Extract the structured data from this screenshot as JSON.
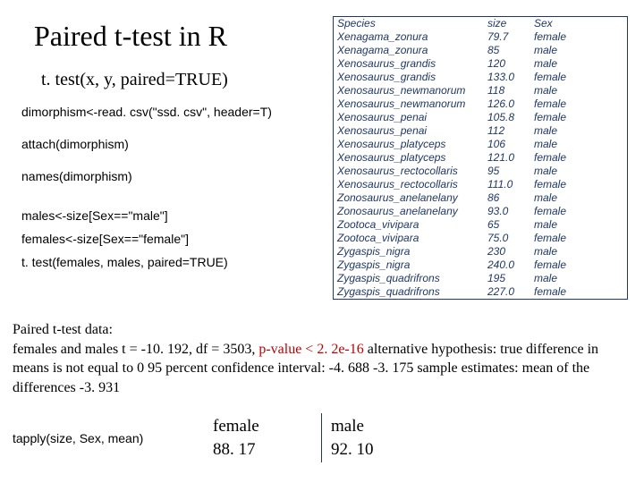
{
  "title": "Paired t-test in R",
  "subtitle": "t. test(x, y, paired=TRUE)",
  "code": {
    "line1": "dimorphism<-read. csv(\"ssd. csv\", header=T)",
    "line2": "attach(dimorphism)",
    "line3": "names(dimorphism)",
    "line4": "males<-size[Sex==\"male\"]",
    "line5": "females<-size[Sex==\"female\"]",
    "line6": "t. test(females, males, paired=TRUE)"
  },
  "table": {
    "headers": {
      "species": "Species",
      "size": "size",
      "sex": "Sex"
    },
    "rows": [
      {
        "species": "Xenagama_zonura",
        "size": "79.7",
        "sex": "female"
      },
      {
        "species": "Xenagama_zonura",
        "size": "85",
        "sex": "male"
      },
      {
        "species": "Xenosaurus_grandis",
        "size": "120",
        "sex": "male"
      },
      {
        "species": "Xenosaurus_grandis",
        "size": "133.0",
        "sex": "female"
      },
      {
        "species": "Xenosaurus_newmanorum",
        "size": "118",
        "sex": "male"
      },
      {
        "species": "Xenosaurus_newmanorum",
        "size": "126.0",
        "sex": "female"
      },
      {
        "species": "Xenosaurus_penai",
        "size": "105.8",
        "sex": "female"
      },
      {
        "species": "Xenosaurus_penai",
        "size": "112",
        "sex": "male"
      },
      {
        "species": "Xenosaurus_platyceps",
        "size": "106",
        "sex": "male"
      },
      {
        "species": "Xenosaurus_platyceps",
        "size": "121.0",
        "sex": "female"
      },
      {
        "species": "Xenosaurus_rectocollaris",
        "size": "95",
        "sex": "male"
      },
      {
        "species": "Xenosaurus_rectocollaris",
        "size": "111.0",
        "sex": "female"
      },
      {
        "species": "Zonosaurus_anelanelany",
        "size": "86",
        "sex": "male"
      },
      {
        "species": "Zonosaurus_anelanelany",
        "size": "93.0",
        "sex": "female"
      },
      {
        "species": "Zootoca_vivipara",
        "size": "65",
        "sex": "male"
      },
      {
        "species": "Zootoca_vivipara",
        "size": "75.0",
        "sex": "female"
      },
      {
        "species": "Zygaspis_nigra",
        "size": "230",
        "sex": "male"
      },
      {
        "species": "Zygaspis_nigra",
        "size": "240.0",
        "sex": "female"
      },
      {
        "species": "Zygaspis_quadrifrons",
        "size": "195",
        "sex": "male"
      },
      {
        "species": "Zygaspis_quadrifrons",
        "size": "227.0",
        "sex": "female"
      }
    ]
  },
  "results": {
    "part1": "Paired t-test data:",
    "part2": "females and males t = -10. 192, df = 3503, ",
    "pvalue": "p-value < 2. 2e-16",
    "part3": " alternative hypothesis: true difference in means is not equal to 0 95 percent confidence interval: -4. 688 -3. 175 sample estimates: mean of the differences -3. 931"
  },
  "tapply": "tapply(size, Sex, mean)",
  "means": {
    "female_label": "female",
    "female_value": "88. 17",
    "male_label": "male",
    "male_value": "92. 10"
  }
}
